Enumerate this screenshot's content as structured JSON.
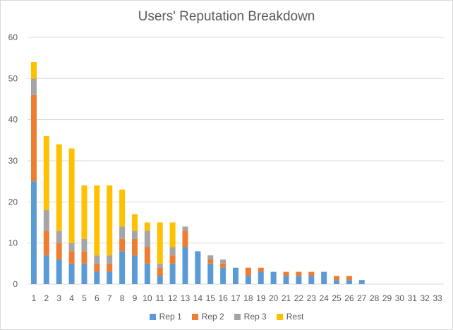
{
  "chart_data": {
    "type": "bar",
    "stacked": true,
    "title": "Users' Reputation Breakdown",
    "xlabel": "",
    "ylabel": "",
    "ylim": [
      0,
      60
    ],
    "yticks": [
      0,
      10,
      20,
      30,
      40,
      50,
      60
    ],
    "grid": true,
    "legend_position": "bottom",
    "categories": [
      "1",
      "2",
      "3",
      "4",
      "5",
      "6",
      "7",
      "8",
      "9",
      "10",
      "11",
      "12",
      "13",
      "14",
      "15",
      "16",
      "17",
      "18",
      "19",
      "20",
      "21",
      "22",
      "23",
      "24",
      "25",
      "26",
      "27",
      "28",
      "29",
      "30",
      "31",
      "32",
      "33"
    ],
    "series": [
      {
        "name": "Rep 1",
        "color": "#5b9bd5",
        "values": [
          25,
          7,
          6,
          5,
          5,
          3,
          3,
          8,
          7,
          5,
          2,
          5,
          9,
          8,
          5,
          4,
          4,
          2,
          3,
          3,
          2,
          2,
          2,
          3,
          1,
          1,
          1,
          0,
          0,
          0,
          0,
          0,
          0
        ]
      },
      {
        "name": "Rep 2",
        "color": "#ed7d31",
        "values": [
          21,
          6,
          4,
          3,
          3,
          2,
          2,
          3,
          4,
          4,
          2,
          2,
          4,
          0,
          1,
          1,
          0,
          2,
          1,
          0,
          1,
          1,
          1,
          0,
          1,
          1,
          0,
          0,
          0,
          0,
          0,
          0,
          0
        ]
      },
      {
        "name": "Rep 3",
        "color": "#a5a5a5",
        "values": [
          4,
          5,
          3,
          2,
          3,
          2,
          2,
          3,
          2,
          4,
          1,
          2,
          1,
          0,
          1,
          1,
          0,
          0,
          0,
          0,
          0,
          0,
          0,
          0,
          0,
          0,
          0,
          0,
          0,
          0,
          0,
          0,
          0
        ]
      },
      {
        "name": "Rest",
        "color": "#ffc000",
        "values": [
          4,
          18,
          21,
          23,
          13,
          17,
          17,
          9,
          4,
          2,
          10,
          6,
          0,
          0,
          0,
          0,
          0,
          0,
          0,
          0,
          0,
          0,
          0,
          0,
          0,
          0,
          0,
          0,
          0,
          0,
          0,
          0,
          0
        ]
      }
    ]
  }
}
